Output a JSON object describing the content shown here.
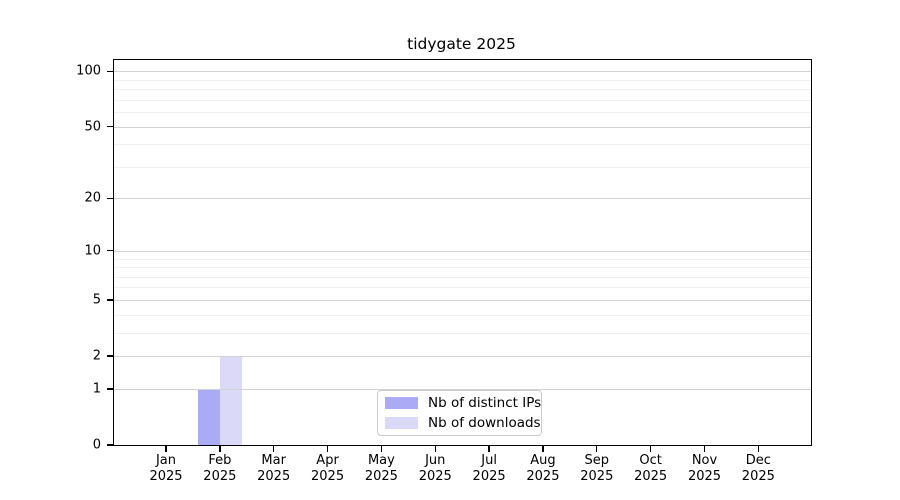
{
  "chart_data": {
    "type": "bar",
    "title": "tidygate 2025",
    "categories": [
      "Jan 2025",
      "Feb 2025",
      "Mar 2025",
      "Apr 2025",
      "May 2025",
      "Jun 2025",
      "Jul 2025",
      "Aug 2025",
      "Sep 2025",
      "Oct 2025",
      "Nov 2025",
      "Dec 2025"
    ],
    "series": [
      {
        "name": "Nb of distinct IPs",
        "color": "#aaaaf5",
        "values": [
          0,
          1,
          0,
          0,
          0,
          0,
          0,
          0,
          0,
          0,
          0,
          0
        ]
      },
      {
        "name": "Nb of downloads",
        "color": "#dadaf8",
        "values": [
          0,
          2,
          0,
          0,
          0,
          0,
          0,
          0,
          0,
          0,
          0,
          0
        ]
      }
    ],
    "xlabel": "",
    "ylabel": "",
    "yscale": "log1p",
    "ylim": [
      0,
      115
    ],
    "yticks": [
      0,
      1,
      2,
      5,
      10,
      20,
      50,
      100
    ],
    "yticks_minor": [
      3,
      4,
      6,
      7,
      8,
      9,
      30,
      40,
      60,
      70,
      80,
      90
    ],
    "grid": "horizontal",
    "legend_position": "lower center",
    "colors": {
      "major_grid": "#d2d2d2",
      "minor_grid": "#f0f0f0",
      "axis": "#000000",
      "text": "#000000",
      "background": "#ffffff"
    }
  }
}
